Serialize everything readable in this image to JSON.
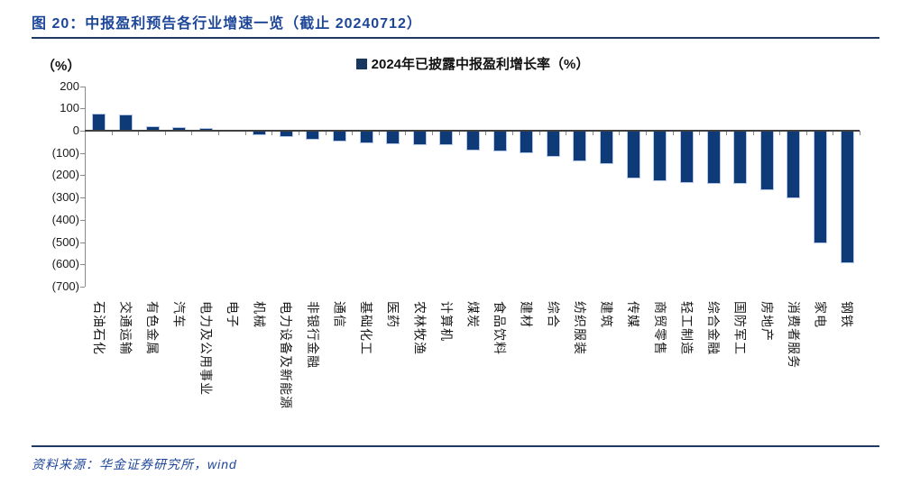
{
  "header": {
    "title": "图 20：中报盈利预告各行业增速一览（截止 20240712）"
  },
  "footer": {
    "source": "资料来源：华金证券研究所，wind"
  },
  "chart_data": {
    "type": "bar",
    "title": "图 20：中报盈利预告各行业增速一览（截止 20240712）",
    "legend": "2024年已披露中报盈利增长率（%）",
    "y_axis_unit": "（%）",
    "ylim": [
      -700,
      200
    ],
    "grid": false,
    "legend_position": "top-center",
    "y_ticks": [
      {
        "value": 200,
        "label": "200"
      },
      {
        "value": 100,
        "label": "100"
      },
      {
        "value": 0,
        "label": "0"
      },
      {
        "value": -100,
        "label": "(100)"
      },
      {
        "value": -200,
        "label": "(200)"
      },
      {
        "value": -300,
        "label": "(300)"
      },
      {
        "value": -400,
        "label": "(400)"
      },
      {
        "value": -500,
        "label": "(500)"
      },
      {
        "value": -600,
        "label": "(600)"
      },
      {
        "value": -700,
        "label": "(700)"
      }
    ],
    "categories": [
      "石油石化",
      "交通运输",
      "有色金属",
      "汽车",
      "电力及公用事业",
      "电子",
      "机械",
      "电力设备及新能源",
      "非银行金融",
      "通信",
      "基础化工",
      "医药",
      "农林牧渔",
      "计算机",
      "煤炭",
      "食品饮料",
      "建材",
      "综合",
      "纺织服装",
      "建筑",
      "传媒",
      "商贸零售",
      "轻工制造",
      "综合金融",
      "国防军工",
      "房地产",
      "消费者服务",
      "家电",
      "钢铁"
    ],
    "series": [
      {
        "name": "2024年已披露中报盈利增长率（%）",
        "values": [
          76,
          72,
          20,
          17,
          12,
          5,
          -18,
          -25,
          -35,
          -44,
          -51,
          -56,
          -59,
          -62,
          -87,
          -91,
          -97,
          -112,
          -133,
          -146,
          -212,
          -222,
          -230,
          -234,
          -234,
          -265,
          -300,
          -500,
          -590
        ]
      }
    ],
    "colors": {
      "bar_fill": "#0e3a78",
      "bar_edge": "#b4c7e7",
      "legend_swatch": "#17375e",
      "axis_line": "#8a8a8a",
      "zero_line": "#3f3f3f",
      "title_blue": "#1d4699",
      "rule_navy": "#1f3864"
    }
  }
}
